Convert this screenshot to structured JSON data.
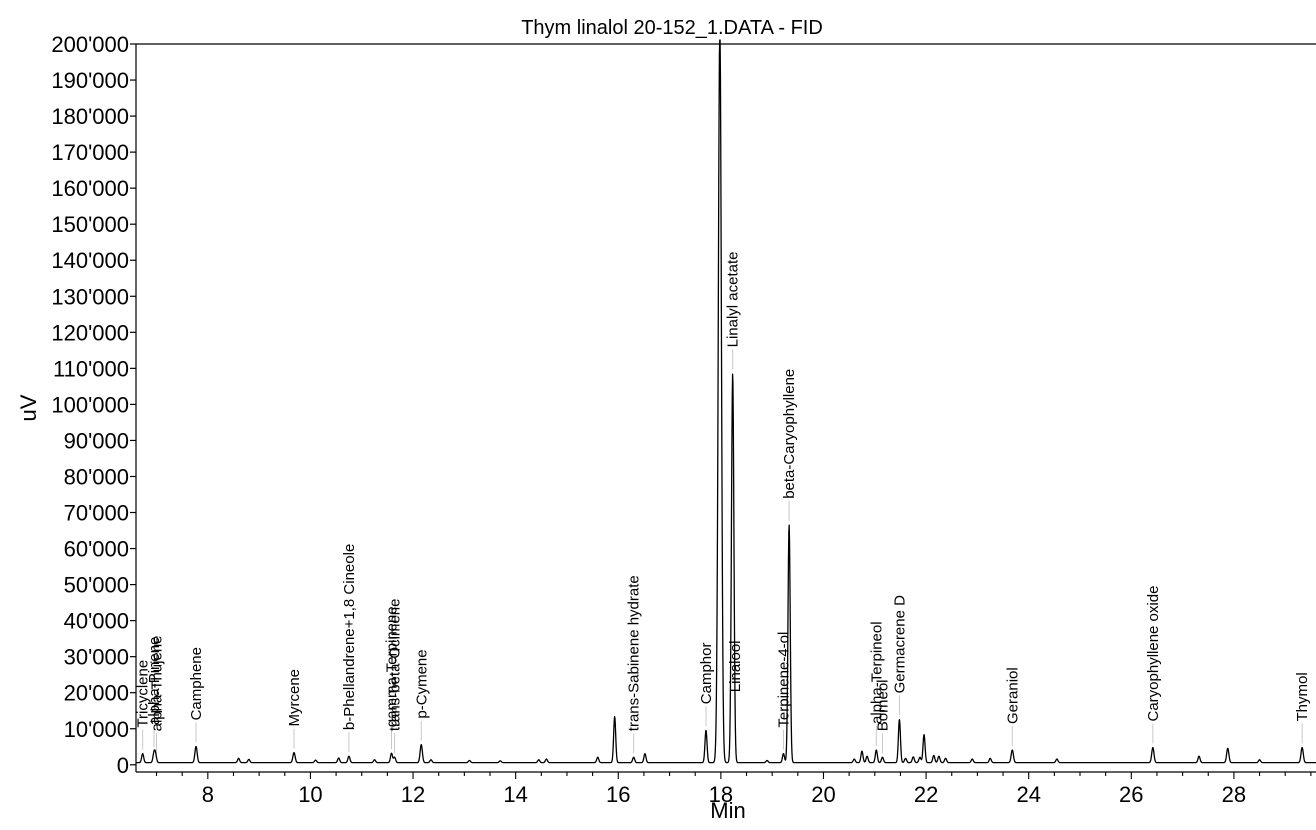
{
  "chart_data": {
    "type": "line",
    "title": "Thym linalol 20-152_1.DATA - FID",
    "xlabel": "Min",
    "ylabel": "uV",
    "xlim": [
      6.6,
      29.6
    ],
    "ylim": [
      -2000,
      200000
    ],
    "x_ticks": [
      8,
      10,
      12,
      14,
      16,
      18,
      20,
      22,
      24,
      26,
      28
    ],
    "x_tick_labels": [
      "8",
      "10",
      "12",
      "14",
      "16",
      "18",
      "20",
      "22",
      "24",
      "26",
      "28"
    ],
    "y_ticks": [
      0,
      10000,
      20000,
      30000,
      40000,
      50000,
      60000,
      70000,
      80000,
      90000,
      100000,
      110000,
      120000,
      130000,
      140000,
      150000,
      160000,
      170000,
      180000,
      190000,
      200000
    ],
    "y_tick_labels": [
      "0",
      "10'000",
      "20'000",
      "30'000",
      "40'000",
      "50'000",
      "60'000",
      "70'000",
      "80'000",
      "90'000",
      "100'000",
      "110'000",
      "120'000",
      "130'000",
      "140'000",
      "150'000",
      "160'000",
      "170'000",
      "180'000",
      "190'000",
      "200'000"
    ],
    "grid": false,
    "baseline": 600,
    "line_color": "#000000",
    "peaks": [
      {
        "x": 6.73,
        "y": 2500,
        "w": 0.02
      },
      {
        "x": 6.95,
        "y": 2500,
        "w": 0.02
      },
      {
        "x": 6.98,
        "y": 2200,
        "w": 0.02
      },
      {
        "x": 7.77,
        "y": 4500,
        "w": 0.022
      },
      {
        "x": 8.6,
        "y": 1200,
        "w": 0.02
      },
      {
        "x": 8.8,
        "y": 900,
        "w": 0.02
      },
      {
        "x": 9.68,
        "y": 2800,
        "w": 0.022
      },
      {
        "x": 10.1,
        "y": 700,
        "w": 0.02
      },
      {
        "x": 10.55,
        "y": 1300,
        "w": 0.02
      },
      {
        "x": 10.75,
        "y": 1800,
        "w": 0.02
      },
      {
        "x": 11.25,
        "y": 800,
        "w": 0.02
      },
      {
        "x": 11.58,
        "y": 2600,
        "w": 0.02
      },
      {
        "x": 11.64,
        "y": 1500,
        "w": 0.02
      },
      {
        "x": 12.16,
        "y": 5000,
        "w": 0.022
      },
      {
        "x": 12.35,
        "y": 800,
        "w": 0.02
      },
      {
        "x": 13.1,
        "y": 600,
        "w": 0.02
      },
      {
        "x": 13.7,
        "y": 500,
        "w": 0.02
      },
      {
        "x": 14.45,
        "y": 800,
        "w": 0.02
      },
      {
        "x": 14.6,
        "y": 1000,
        "w": 0.02
      },
      {
        "x": 15.6,
        "y": 1500,
        "w": 0.02
      },
      {
        "x": 15.93,
        "y": 12800,
        "w": 0.02
      },
      {
        "x": 16.3,
        "y": 1500,
        "w": 0.02
      },
      {
        "x": 16.52,
        "y": 2500,
        "w": 0.02
      },
      {
        "x": 17.71,
        "y": 9000,
        "w": 0.02
      },
      {
        "x": 17.92,
        "y": 2000,
        "w": 0.02
      },
      {
        "x": 17.98,
        "y": 205000,
        "w": 0.03
      },
      {
        "x": 18.23,
        "y": 108000,
        "w": 0.024
      },
      {
        "x": 18.9,
        "y": 600,
        "w": 0.02
      },
      {
        "x": 19.22,
        "y": 2500,
        "w": 0.02
      },
      {
        "x": 19.33,
        "y": 66000,
        "w": 0.022
      },
      {
        "x": 20.6,
        "y": 1000,
        "w": 0.02
      },
      {
        "x": 20.75,
        "y": 3200,
        "w": 0.02
      },
      {
        "x": 20.85,
        "y": 1800,
        "w": 0.02
      },
      {
        "x": 21.03,
        "y": 3500,
        "w": 0.02
      },
      {
        "x": 21.15,
        "y": 1500,
        "w": 0.02
      },
      {
        "x": 21.48,
        "y": 12000,
        "w": 0.02
      },
      {
        "x": 21.6,
        "y": 1200,
        "w": 0.02
      },
      {
        "x": 21.75,
        "y": 1600,
        "w": 0.02
      },
      {
        "x": 21.88,
        "y": 1500,
        "w": 0.02
      },
      {
        "x": 21.96,
        "y": 7800,
        "w": 0.02
      },
      {
        "x": 22.15,
        "y": 2000,
        "w": 0.02
      },
      {
        "x": 22.25,
        "y": 1800,
        "w": 0.02
      },
      {
        "x": 22.38,
        "y": 1200,
        "w": 0.02
      },
      {
        "x": 22.9,
        "y": 1000,
        "w": 0.02
      },
      {
        "x": 23.25,
        "y": 1200,
        "w": 0.02
      },
      {
        "x": 23.68,
        "y": 3500,
        "w": 0.022
      },
      {
        "x": 24.55,
        "y": 1000,
        "w": 0.02
      },
      {
        "x": 26.42,
        "y": 4200,
        "w": 0.022
      },
      {
        "x": 27.32,
        "y": 1800,
        "w": 0.02
      },
      {
        "x": 27.88,
        "y": 4000,
        "w": 0.022
      },
      {
        "x": 28.5,
        "y": 800,
        "w": 0.02
      },
      {
        "x": 29.33,
        "y": 4200,
        "w": 0.022
      }
    ],
    "annotations": [
      {
        "label": "Tricyclene",
        "x": 6.73
      },
      {
        "label": "alpha-Pinene",
        "x": 6.95
      },
      {
        "label": "alpha-Thujene",
        "x": 7.0
      },
      {
        "label": "Camphene",
        "x": 7.77
      },
      {
        "label": "Myrcene",
        "x": 9.68
      },
      {
        "label": "b-Phellandrene+1,8 Cineole",
        "x": 10.75
      },
      {
        "label": "gamma-Terpinene",
        "x": 11.58
      },
      {
        "label": "trans-beta-Ocimene",
        "x": 11.64
      },
      {
        "label": "p-Cymene",
        "x": 12.16
      },
      {
        "label": "trans-Sabinene hydrate",
        "x": 16.3
      },
      {
        "label": "Camphor",
        "x": 17.71
      },
      {
        "label": "Linalool",
        "x": 18.28
      },
      {
        "label": "Linalyl acetate",
        "x": 18.23
      },
      {
        "label": "Terpinene-4-ol",
        "x": 19.22
      },
      {
        "label": "beta-Caryophyllene",
        "x": 19.33
      },
      {
        "label": "alpha-Terpineol",
        "x": 21.03
      },
      {
        "label": "Borneol",
        "x": 21.15
      },
      {
        "label": "Germacrene D",
        "x": 21.48
      },
      {
        "label": "Geraniol",
        "x": 23.68
      },
      {
        "label": "Caryophyllene oxide",
        "x": 26.42
      },
      {
        "label": "Thymol",
        "x": 29.33
      }
    ]
  }
}
